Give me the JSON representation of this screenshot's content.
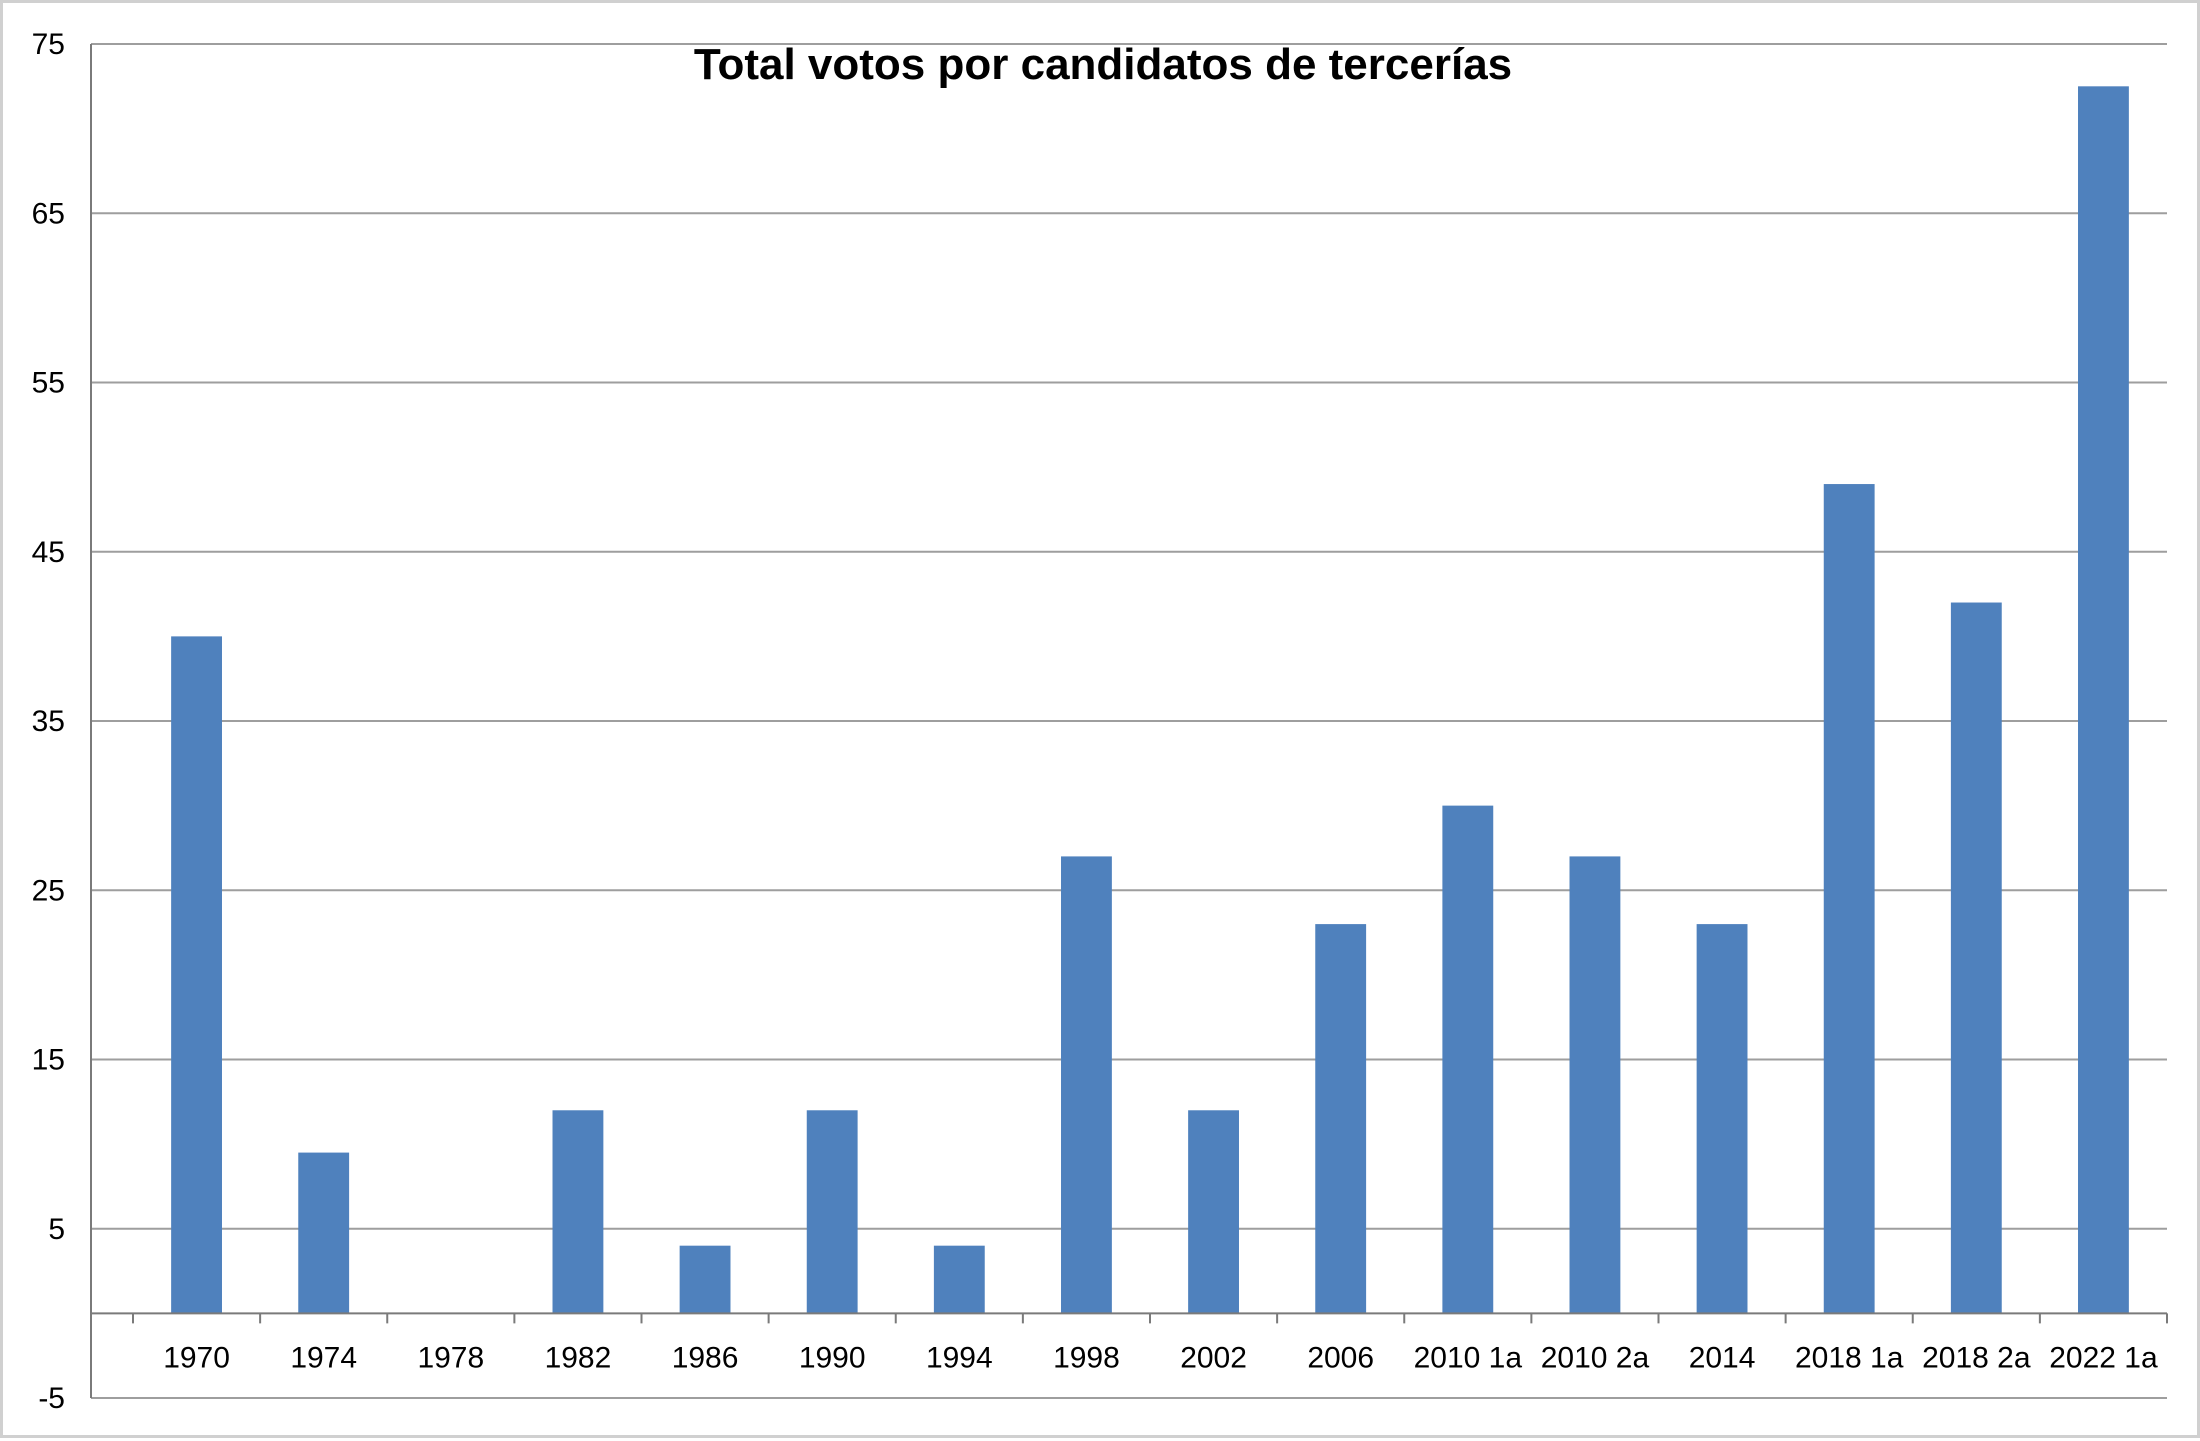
{
  "chart_data": {
    "type": "bar",
    "title": "Total votos por candidatos de tercerías",
    "xlabel": "",
    "ylabel": "",
    "ylim": [
      -5,
      75
    ],
    "yticks": [
      -5,
      5,
      15,
      25,
      35,
      45,
      55,
      65,
      75
    ],
    "grid": true,
    "legend": "none",
    "bar_color": "#4f81bd",
    "categories": [
      "1970",
      "1974",
      "1978",
      "1982",
      "1986",
      "1990",
      "1994",
      "1998",
      "2002",
      "2006",
      "2010 1a",
      "2010 2a",
      "2014",
      "2018 1a",
      "2018 2a",
      "2022 1a"
    ],
    "values": [
      40,
      9.5,
      0,
      12,
      4,
      12,
      4,
      27,
      12,
      23,
      30,
      27,
      23,
      49,
      42,
      72.5
    ]
  }
}
